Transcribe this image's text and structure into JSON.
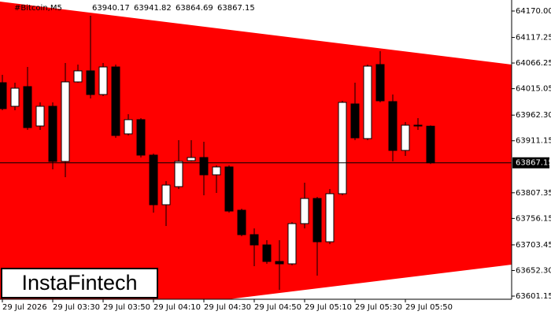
{
  "chart_data": {
    "type": "candlestick",
    "title": "#Bitcoin,M5",
    "logo": "InstaFintech",
    "pattern_color": "#ff0000",
    "up_color": "#ffffff",
    "down_color": "#000000",
    "ylim": [
      63594.9,
      64192.0
    ],
    "yticks": [
      {
        "value": 64170.0,
        "label": "64170.00"
      },
      {
        "value": 64117.25,
        "label": "64117.25"
      },
      {
        "value": 64066.25,
        "label": "64066.25"
      },
      {
        "value": 64015.05,
        "label": "64015.05"
      },
      {
        "value": 63962.3,
        "label": "63962.30"
      },
      {
        "value": 63911.15,
        "label": "63911.15"
      },
      {
        "value": 63807.35,
        "label": "63807.35"
      },
      {
        "value": 63756.15,
        "label": "63756.15"
      },
      {
        "value": 63703.45,
        "label": "63703.45"
      },
      {
        "value": 63652.3,
        "label": "63652.30"
      },
      {
        "value": 63601.15,
        "label": "63601.15"
      }
    ],
    "categories": [
      "29 Jul 2026",
      null,
      null,
      null,
      "29 Jul 03:30",
      null,
      null,
      null,
      "29 Jul 03:50",
      null,
      null,
      null,
      "29 Jul 04:10",
      null,
      null,
      null,
      "29 Jul 04:30",
      null,
      null,
      null,
      "29 Jul 04:50",
      null,
      null,
      null,
      "29 Jul 05:10",
      null,
      null,
      null,
      "29 Jul 05:30",
      null,
      null,
      null,
      "29 Jul 05:50",
      null,
      null
    ],
    "series": [
      {
        "open": 64027.0,
        "high": 64042.7,
        "low": 63972.0,
        "close": 63975.2
      },
      {
        "open": 63979.9,
        "high": 64027.0,
        "low": 63972.0,
        "close": 64016.0
      },
      {
        "open": 64019.2,
        "high": 64058.4,
        "low": 63932.7,
        "close": 63937.4
      },
      {
        "open": 63940.6,
        "high": 63987.7,
        "low": 63932.7,
        "close": 63979.9
      },
      {
        "open": 63979.9,
        "high": 63987.7,
        "low": 63854.2,
        "close": 63869.9
      },
      {
        "open": 63869.9,
        "high": 64066.3,
        "low": 63838.5,
        "close": 64028.6
      },
      {
        "open": 64028.6,
        "high": 64063.2,
        "low": 64027.0,
        "close": 64050.6
      },
      {
        "open": 64050.6,
        "high": 64160.6,
        "low": 63995.6,
        "close": 64003.4
      },
      {
        "open": 64003.4,
        "high": 64066.3,
        "low": 64000.3,
        "close": 64058.4
      },
      {
        "open": 64058.4,
        "high": 64063.2,
        "low": 63917.0,
        "close": 63921.7
      },
      {
        "open": 63924.9,
        "high": 63964.2,
        "low": 63921.7,
        "close": 63953.2
      },
      {
        "open": 63953.2,
        "high": 63956.3,
        "low": 63877.7,
        "close": 63882.5
      },
      {
        "open": 63882.5,
        "high": 63885.6,
        "low": 63767.7,
        "close": 63783.5
      },
      {
        "open": 63783.5,
        "high": 63830.6,
        "low": 63741.0,
        "close": 63822.7
      },
      {
        "open": 63819.6,
        "high": 63912.3,
        "low": 63814.9,
        "close": 63869.9
      },
      {
        "open": 63871.5,
        "high": 63912.3,
        "low": 63869.9,
        "close": 63877.7
      },
      {
        "open": 63877.7,
        "high": 63909.2,
        "low": 63802.3,
        "close": 63843.2
      },
      {
        "open": 63843.2,
        "high": 63862.0,
        "low": 63807.0,
        "close": 63858.9
      },
      {
        "open": 63858.9,
        "high": 63862.0,
        "low": 63767.7,
        "close": 63770.9
      },
      {
        "open": 63772.5,
        "high": 63775.6,
        "low": 63720.6,
        "close": 63723.8
      },
      {
        "open": 63723.8,
        "high": 63736.3,
        "low": 63660.9,
        "close": 63703.3
      },
      {
        "open": 63703.3,
        "high": 63712.8,
        "low": 63665.6,
        "close": 63670.3
      },
      {
        "open": 63670.3,
        "high": 63712.8,
        "low": 63613.8,
        "close": 63665.6
      },
      {
        "open": 63665.6,
        "high": 63748.9,
        "low": 63662.5,
        "close": 63745.8
      },
      {
        "open": 63745.8,
        "high": 63827.5,
        "low": 63736.3,
        "close": 63796.0
      },
      {
        "open": 63796.0,
        "high": 63799.2,
        "low": 63642.0,
        "close": 63709.6
      },
      {
        "open": 63709.6,
        "high": 63814.9,
        "low": 63704.9,
        "close": 63805.5
      },
      {
        "open": 63805.5,
        "high": 63990.9,
        "low": 63802.3,
        "close": 63987.7
      },
      {
        "open": 63984.6,
        "high": 64027.0,
        "low": 63912.3,
        "close": 63917.0
      },
      {
        "open": 63915.5,
        "high": 64063.2,
        "low": 63912.3,
        "close": 64060.0
      },
      {
        "open": 64063.2,
        "high": 64089.9,
        "low": 63987.7,
        "close": 63990.9
      },
      {
        "open": 63989.3,
        "high": 64003.4,
        "low": 63869.9,
        "close": 63891.9
      },
      {
        "open": 63891.9,
        "high": 63948.4,
        "low": 63880.9,
        "close": 63942.2
      },
      {
        "open": 63942.2,
        "high": 63956.3,
        "low": 63932.7,
        "close": 63940.6
      },
      {
        "open": 63940.17,
        "high": 63941.82,
        "low": 63864.69,
        "close": 63867.15
      }
    ]
  }
}
